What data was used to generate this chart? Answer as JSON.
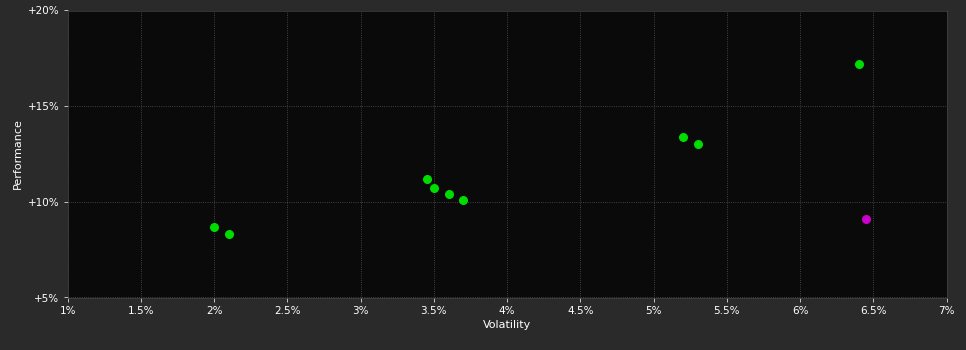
{
  "background_color": "#2a2a2a",
  "plot_bg_color": "#0a0a0a",
  "text_color": "#ffffff",
  "xlabel": "Volatility",
  "ylabel": "Performance",
  "xlim": [
    0.01,
    0.07
  ],
  "ylim": [
    0.05,
    0.2
  ],
  "xticks": [
    0.01,
    0.015,
    0.02,
    0.025,
    0.03,
    0.035,
    0.04,
    0.045,
    0.05,
    0.055,
    0.06,
    0.065,
    0.07
  ],
  "xtick_labels": [
    "1%",
    "1.5%",
    "2%",
    "2.5%",
    "3%",
    "3.5%",
    "4%",
    "4.5%",
    "5%",
    "5.5%",
    "6%",
    "6.5%",
    "7%"
  ],
  "yticks": [
    0.05,
    0.1,
    0.15,
    0.2
  ],
  "ytick_labels": [
    "+5%",
    "+10%",
    "+15%",
    "+20%"
  ],
  "green_points": [
    [
      0.02,
      0.087
    ],
    [
      0.021,
      0.083
    ],
    [
      0.0345,
      0.112
    ],
    [
      0.035,
      0.107
    ],
    [
      0.036,
      0.104
    ],
    [
      0.037,
      0.101
    ],
    [
      0.052,
      0.134
    ],
    [
      0.053,
      0.13
    ],
    [
      0.064,
      0.172
    ]
  ],
  "magenta_points": [
    [
      0.0645,
      0.091
    ]
  ],
  "dot_size": 30,
  "green_color": "#00dd00",
  "magenta_color": "#cc00cc"
}
